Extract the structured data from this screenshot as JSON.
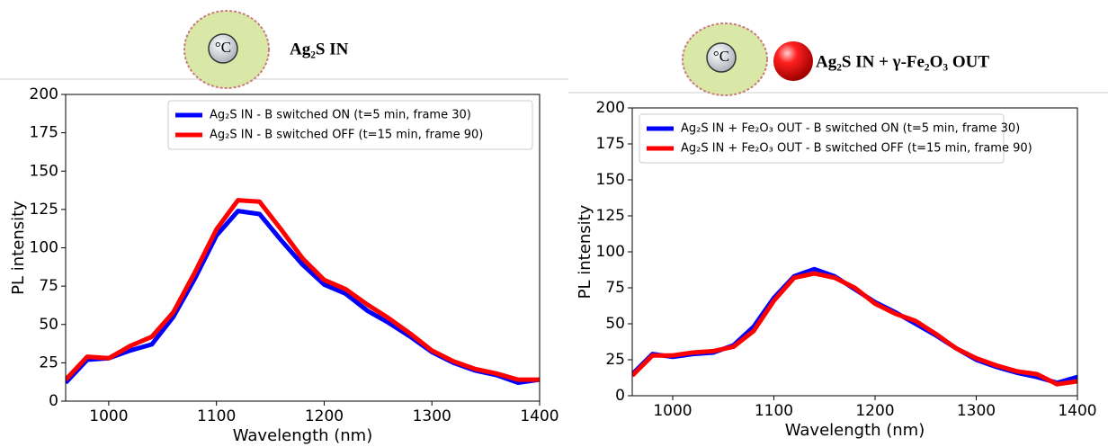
{
  "chart_data": [
    {
      "type": "line",
      "title": "Ag₂S IN",
      "icon_label": "°C",
      "xlabel": "Wavelength (nm)",
      "ylabel": "PL intensity",
      "x": [
        960,
        980,
        1000,
        1020,
        1040,
        1060,
        1080,
        1100,
        1120,
        1140,
        1160,
        1180,
        1200,
        1220,
        1240,
        1260,
        1280,
        1300,
        1320,
        1340,
        1360,
        1380,
        1400
      ],
      "xlim": [
        960,
        1400
      ],
      "xticks": [
        1000,
        1100,
        1200,
        1300,
        1400
      ],
      "ylim": [
        0,
        200
      ],
      "yticks": [
        0,
        25,
        50,
        75,
        100,
        125,
        150,
        175,
        200
      ],
      "legend": "upper right",
      "series": [
        {
          "name": "Ag₂S IN - B switched ON (t=5 min, frame 30)",
          "color": "#0000ff",
          "values": [
            12,
            27,
            28,
            33,
            37,
            55,
            80,
            108,
            124,
            122,
            105,
            89,
            76,
            70,
            59,
            51,
            42,
            32,
            25,
            20,
            17,
            12,
            14
          ]
        },
        {
          "name": "Ag₂S IN - B switched OFF (t=15 min, frame 90)",
          "color": "#ff0000",
          "values": [
            14,
            29,
            28,
            36,
            42,
            58,
            84,
            112,
            131,
            130,
            112,
            93,
            79,
            73,
            63,
            54,
            44,
            33,
            26,
            21,
            18,
            14,
            14
          ]
        }
      ]
    },
    {
      "type": "line",
      "title": "Ag₂S IN + γ-Fe₂O₃  OUT",
      "icon_label": "°C",
      "xlabel": "Wavelength (nm)",
      "ylabel": "PL intensity",
      "x": [
        960,
        980,
        1000,
        1020,
        1040,
        1060,
        1080,
        1100,
        1120,
        1140,
        1160,
        1180,
        1200,
        1220,
        1240,
        1260,
        1280,
        1300,
        1320,
        1340,
        1360,
        1380,
        1400
      ],
      "xlim": [
        960,
        1400
      ],
      "xticks": [
        1000,
        1100,
        1200,
        1300,
        1400
      ],
      "ylim": [
        0,
        200
      ],
      "yticks": [
        0,
        25,
        50,
        75,
        100,
        125,
        150,
        175,
        200
      ],
      "legend": "upper left",
      "series": [
        {
          "name": "Ag₂S IN + Fe₂O₃ OUT - B switched ON (t=5 min, frame 30)",
          "color": "#0000ff",
          "values": [
            15,
            29,
            27,
            29,
            30,
            35,
            48,
            68,
            83,
            88,
            83,
            74,
            65,
            58,
            50,
            42,
            33,
            25,
            20,
            16,
            13,
            9,
            13
          ]
        },
        {
          "name": "Ag₂S IN + Fe₂O₃ OUT - B switched OFF (t=15 min, frame 90)",
          "color": "#ff0000",
          "values": [
            14,
            28,
            28,
            30,
            31,
            34,
            45,
            66,
            82,
            85,
            82,
            75,
            64,
            57,
            52,
            43,
            33,
            26,
            21,
            17,
            15,
            8,
            10
          ]
        }
      ]
    }
  ]
}
